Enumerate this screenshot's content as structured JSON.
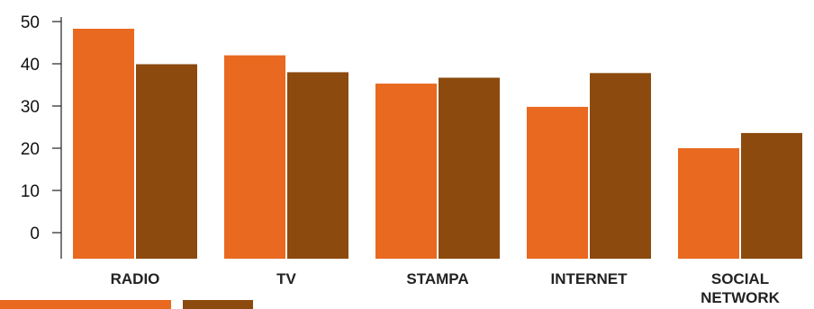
{
  "chart_data": {
    "type": "bar",
    "categories": [
      [
        "RADIO"
      ],
      [
        "TV"
      ],
      [
        "STAMPA"
      ],
      [
        "INTERNET"
      ],
      [
        "SOCIAL",
        "NETWORK"
      ]
    ],
    "series": [
      {
        "color": "#e8691f",
        "values": [
          48.3,
          42.0,
          35.3,
          29.8,
          20.0
        ]
      },
      {
        "color": "#8c4a0e",
        "values": [
          39.9,
          38.0,
          36.7,
          37.8,
          23.6
        ]
      }
    ],
    "y_ticks": [
      0,
      10,
      20,
      30,
      40,
      50
    ],
    "ylim": [
      -6,
      50
    ],
    "legend_placement": "bottom-left",
    "grid": false
  }
}
